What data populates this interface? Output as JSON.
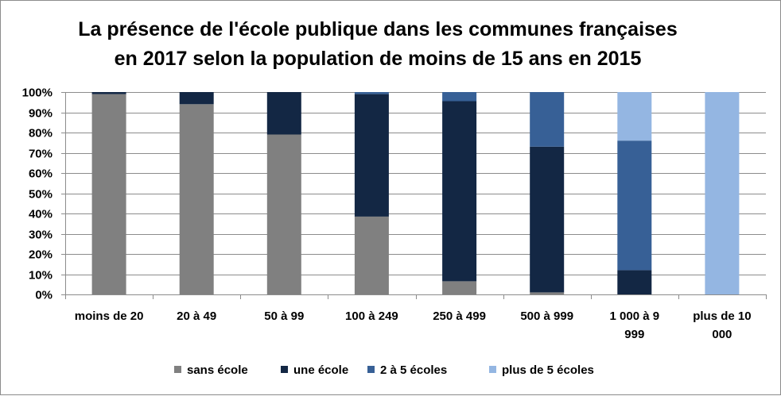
{
  "chart_data": {
    "type": "bar",
    "stacked": true,
    "title_lines": [
      "La présence de l'école publique dans les communes françaises",
      "en 2017 selon la population de moins de 15 ans en 2015"
    ],
    "categories": [
      [
        "moins de 20"
      ],
      [
        "20 à 49"
      ],
      [
        "50 à 99"
      ],
      [
        "100 à 249"
      ],
      [
        "250 à 499"
      ],
      [
        "500 à 999"
      ],
      [
        "1 000 à 9",
        "999"
      ],
      [
        "plus de 10",
        "000"
      ]
    ],
    "series": [
      {
        "name": "sans école",
        "color": "#808080",
        "values": [
          99,
          94,
          79,
          38.5,
          6.5,
          1,
          0,
          0
        ]
      },
      {
        "name": "une école",
        "color": "#132744",
        "values": [
          1,
          6,
          21,
          60.5,
          89,
          72,
          12,
          0
        ]
      },
      {
        "name": "2 à 5 écoles",
        "color": "#376096",
        "values": [
          0,
          0,
          0,
          1,
          4.5,
          27,
          64,
          0
        ]
      },
      {
        "name": "plus de 5 écoles",
        "color": "#94b6e2",
        "values": [
          0,
          0,
          0,
          0,
          0,
          0,
          24,
          100
        ]
      }
    ],
    "y_ticks": [
      "0%",
      "10%",
      "20%",
      "30%",
      "40%",
      "50%",
      "60%",
      "70%",
      "80%",
      "90%",
      "100%"
    ],
    "ylim": [
      0,
      100
    ],
    "grid": true,
    "legend_position": "bottom"
  }
}
